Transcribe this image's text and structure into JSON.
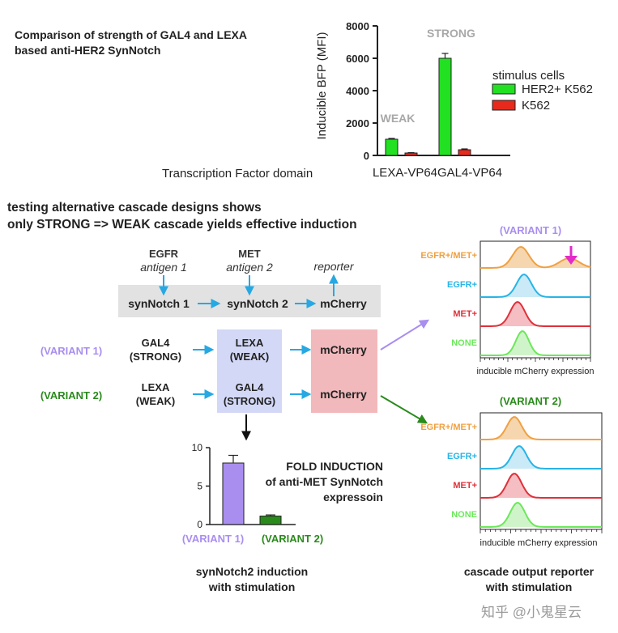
{
  "top_title": [
    "Comparison of strength of GAL4 and LEXA",
    "based anti-HER2 SynNotch"
  ],
  "top_chart": {
    "type": "bar",
    "ylabel": "Inducible BFP (MFI)",
    "y_ticks": [
      "8000",
      "6000",
      "4000",
      "2000",
      "0"
    ],
    "ylim": [
      0,
      8000
    ],
    "xlabel": "Transcription Factor domain",
    "categories": [
      "LEXA-VP64",
      "GAL4-VP64"
    ],
    "series": [
      {
        "name": "HER2+ K562",
        "values": [
          1000,
          6000
        ],
        "errors": [
          50,
          300
        ],
        "color": "#22e022"
      },
      {
        "name": "K562",
        "values": [
          150,
          350
        ],
        "errors": [
          20,
          50
        ],
        "color": "#e8291c"
      }
    ],
    "legend_title": "stimulus cells",
    "annotations": [
      "WEAK",
      "STRONG"
    ]
  },
  "section_title": [
    "testing alternative cascade designs shows",
    "only STRONG => WEAK cascade yields effective induction"
  ],
  "cascade": {
    "antigens": [
      {
        "name": "EGFR",
        "sub": "antigen 1"
      },
      {
        "name": "MET",
        "sub": "antigen 2"
      }
    ],
    "reporter": "reporter",
    "row": [
      "synNotch 1",
      "synNotch 2",
      "mCherry"
    ],
    "variant1": {
      "label": "(VARIANT 1)",
      "first": [
        "GAL4",
        "(STRONG)"
      ],
      "second": [
        "LEXA",
        "(WEAK)"
      ],
      "output": "mCherry"
    },
    "variant2": {
      "label": "(VARIANT 2)",
      "first": [
        "LEXA",
        "(WEAK)"
      ],
      "second": [
        "GAL4",
        "(STRONG)"
      ],
      "output": "mCherry"
    }
  },
  "fold_chart": {
    "type": "bar",
    "y_ticks": [
      "10",
      "5",
      "0"
    ],
    "ylim": [
      0,
      10
    ],
    "categories": [
      "(VARIANT 1)",
      "(VARIANT 2)"
    ],
    "values": [
      8,
      1.1
    ],
    "errors": [
      1.0,
      0.15
    ],
    "colors": [
      "#a98ef0",
      "#2a8a1c"
    ],
    "title": [
      "FOLD INDUCTION",
      "of anti-MET SynNotch",
      "expressoin"
    ],
    "caption": [
      "synNotch2 induction",
      "with stimulation"
    ]
  },
  "flow": {
    "variant1_title": "(VARIANT 1)",
    "variant2_title": "(VARIANT 2)",
    "rows": [
      "EGFR+/MET+",
      "EGFR+",
      "MET+",
      "NONE"
    ],
    "xlabel": "inducible mCherry expression",
    "caption": [
      "cascade output reporter",
      "with stimulation"
    ]
  },
  "colors": {
    "violet": "#a98ef0",
    "green": "#2a8a1c",
    "orange": "#f0a040",
    "cyan": "#27b4e6",
    "red": "#e0303a",
    "lime": "#6be85a",
    "magenta": "#e22bc8",
    "grey_label": "#a8a8a8",
    "arrow_blue": "#27a8e2",
    "lexa_box": "#d3d8f6",
    "mcherry_box": "#f2b9bc"
  },
  "watermark": "知乎 @小鬼星云"
}
